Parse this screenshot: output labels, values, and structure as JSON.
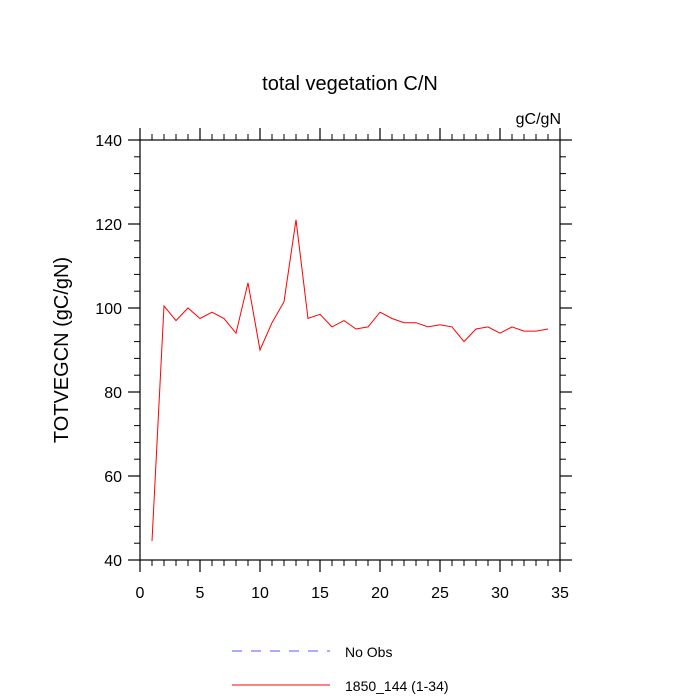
{
  "chart_data": {
    "type": "line",
    "title": "total vegetation C/N",
    "units_label": "gC/gN",
    "ylabel": "TOTVEGCN  (gC/gN)",
    "xlabel": "",
    "xlim": [
      0,
      35
    ],
    "ylim": [
      40,
      140
    ],
    "x_ticks": [
      0,
      5,
      10,
      15,
      20,
      25,
      30,
      35
    ],
    "y_ticks": [
      40,
      60,
      80,
      100,
      120,
      140
    ],
    "x_minor_step": 1,
    "y_minor_step": 4,
    "grid": false,
    "legend_position": "bottom",
    "legend": [
      {
        "label": "No Obs",
        "color": "#7a7aff",
        "style": "dashed"
      },
      {
        "label": "1850_144 (1-34)",
        "color": "#ff0000",
        "style": "solid"
      }
    ],
    "series": [
      {
        "name": "1850_144 (1-34)",
        "color": "#ff0000",
        "x": [
          1,
          2,
          3,
          4,
          5,
          6,
          7,
          8,
          9,
          10,
          11,
          12,
          13,
          14,
          15,
          16,
          17,
          18,
          19,
          20,
          21,
          22,
          23,
          24,
          25,
          26,
          27,
          28,
          29,
          30,
          31,
          32,
          33,
          34
        ],
        "values": [
          44.5,
          100.5,
          97,
          100,
          97.5,
          99,
          97.5,
          94,
          106,
          90,
          96.5,
          101.5,
          121,
          97.5,
          98.5,
          95.5,
          97,
          95,
          95.5,
          99,
          97.5,
          96.5,
          96.5,
          95.5,
          96,
          95.5,
          92,
          95,
          95.5,
          94,
          95.5,
          94.5,
          94.5,
          95
        ]
      }
    ]
  }
}
